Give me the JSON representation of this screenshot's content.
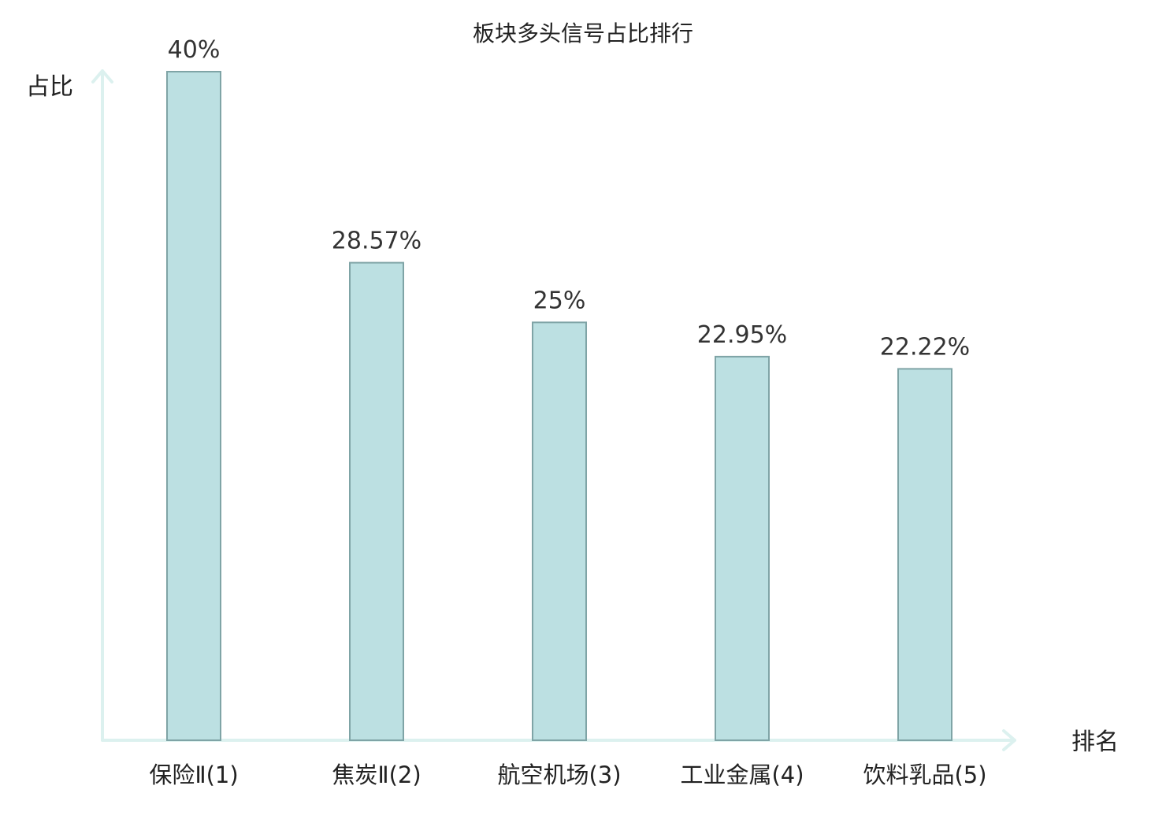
{
  "chart_data": {
    "type": "bar",
    "title": "板块多头信号占比排行",
    "xlabel": "排名",
    "ylabel": "占比",
    "categories": [
      "保险Ⅱ(1)",
      "焦炭Ⅱ(2)",
      "航空机场(3)",
      "工业金属(4)",
      "饮料乳品(5)"
    ],
    "values": [
      40,
      28.57,
      25,
      22.95,
      22.22
    ],
    "value_labels": [
      "40%",
      "28.57%",
      "25%",
      "22.95%",
      "22.22%"
    ],
    "ylim": [
      0,
      40
    ],
    "grid": false,
    "legend": "none",
    "highlight_index": 0
  },
  "colors": {
    "bar_fill": "#bce0e2",
    "bar_stroke": "#7fa4a6",
    "axis": "#dcf1ef",
    "text": "#222222",
    "value_text": "#333333",
    "highlight_text": "#e01b1b"
  }
}
